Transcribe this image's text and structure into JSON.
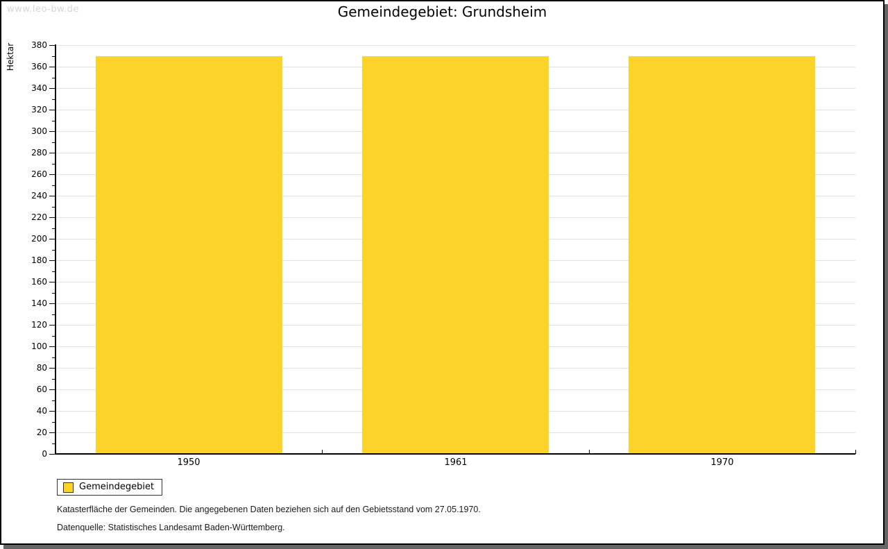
{
  "watermark": "www.leo-bw.de",
  "title": "Gemeindegebiet: Grundsheim",
  "chart_data": {
    "type": "bar",
    "title": "Gemeindegebiet: Grundsheim",
    "categories": [
      "1950",
      "1961",
      "1970"
    ],
    "series": [
      {
        "name": "Gemeindegebiet",
        "values": [
          370,
          370,
          370
        ],
        "color": "#FCD32B"
      }
    ],
    "xlabel": "",
    "ylabel": "Hektar",
    "ylim": [
      0,
      380
    ],
    "y_major_step": 20,
    "y_minor_step": 10,
    "grid": true,
    "legend_position": "bottom-left"
  },
  "legend": {
    "items": [
      {
        "label": "Gemeindegebiet",
        "color": "#FCD32B"
      }
    ]
  },
  "footnotes": [
    "Katasterfläche der Gemeinden. Die angegebenen Daten beziehen sich auf den Gebietsstand vom 27.05.1970.",
    "Datenquelle: Statistisches Landesamt Baden-Württemberg."
  ],
  "colors": {
    "bar": "#FCD32B",
    "gridline": "#E2E2E2",
    "axis": "#000000",
    "watermark": "#D6D6D6",
    "frame_border": "#000000",
    "frame_shadow": "#666666"
  }
}
